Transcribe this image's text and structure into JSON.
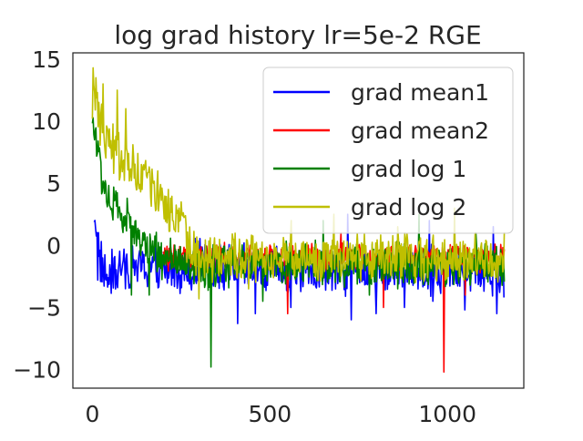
{
  "chart_data": {
    "type": "line",
    "title": "log grad history lr=5e-2 RGE",
    "xlabel": "",
    "ylabel": "",
    "xlim": [
      -55,
      1215
    ],
    "ylim": [
      -11.5,
      15.5
    ],
    "x_ticks": [
      0,
      500,
      1000
    ],
    "x_tick_labels": [
      "0",
      "500",
      "1000"
    ],
    "y_ticks": [
      15,
      10,
      5,
      0,
      -5,
      -10
    ],
    "y_tick_labels": [
      "15",
      "10",
      "5",
      "0",
      "−5",
      "−10"
    ],
    "grid": false,
    "legend_position": "top-right",
    "n_points": 1160,
    "series": [
      {
        "name": "grad mean1",
        "color": "#0000ff",
        "description": "noisy trace: high early values decaying toward about -2 with spikes",
        "keypoints": [
          [
            5,
            3
          ],
          [
            10,
            2
          ],
          [
            20,
            -1
          ],
          [
            40,
            -2.8
          ],
          [
            100,
            -1.5
          ],
          [
            200,
            -2
          ],
          [
            300,
            -1.5
          ],
          [
            400,
            -2
          ],
          [
            500,
            -2
          ],
          [
            600,
            -2
          ],
          [
            700,
            -2
          ],
          [
            800,
            -2
          ],
          [
            900,
            -2
          ],
          [
            1000,
            -2
          ],
          [
            1100,
            -2
          ],
          [
            1160,
            -2
          ]
        ],
        "noise": 2.2,
        "spikes": [
          [
            15,
            -2.8
          ],
          [
            40,
            -2.8
          ],
          [
            410,
            -6.3
          ],
          [
            460,
            -5.5
          ],
          [
            560,
            -5
          ],
          [
            730,
            -6
          ],
          [
            800,
            -5.5
          ],
          [
            880,
            -5
          ],
          [
            960,
            -4.5
          ],
          [
            1050,
            -5.2
          ],
          [
            1140,
            -5.5
          ],
          [
            1160,
            -4.2
          ],
          [
            720,
            2.5
          ],
          [
            950,
            2
          ],
          [
            1130,
            1.5
          ]
        ]
      },
      {
        "name": "grad mean2",
        "color": "#ff0000",
        "description": "noisy trace centred near -1 from x=200 onward",
        "keypoints": [
          [
            200,
            -1
          ],
          [
            300,
            -1
          ],
          [
            400,
            -1
          ],
          [
            500,
            -1
          ],
          [
            600,
            -1
          ],
          [
            700,
            -1
          ],
          [
            800,
            -1
          ],
          [
            900,
            -1
          ],
          [
            1000,
            -1
          ],
          [
            1100,
            -1
          ],
          [
            1160,
            -1
          ]
        ],
        "noise": 1.3,
        "spikes": [
          [
            550,
            -5.5
          ],
          [
            990,
            -10.2
          ],
          [
            820,
            -5
          ],
          [
            700,
            1
          ],
          [
            1050,
            -4
          ]
        ]
      },
      {
        "name": "grad log 1",
        "color": "#008000",
        "description": "noisy trace decaying from about 10 early to about -1.5",
        "keypoints": [
          [
            0,
            10
          ],
          [
            30,
            5
          ],
          [
            60,
            3
          ],
          [
            100,
            2
          ],
          [
            150,
            0
          ],
          [
            200,
            -1
          ],
          [
            250,
            -1.5
          ],
          [
            300,
            -2
          ],
          [
            400,
            -1.5
          ],
          [
            500,
            -1.5
          ],
          [
            600,
            -1.5
          ],
          [
            700,
            -1.5
          ],
          [
            800,
            -1.5
          ],
          [
            900,
            -1.5
          ],
          [
            1000,
            -1.5
          ],
          [
            1100,
            -1.5
          ],
          [
            1160,
            -1.5
          ]
        ],
        "noise": 2.0,
        "spikes": [
          [
            335,
            -9.8
          ],
          [
            110,
            -4
          ],
          [
            160,
            -4
          ],
          [
            650,
            2
          ],
          [
            780,
            -4
          ],
          [
            1080,
            1
          ],
          [
            480,
            -4.5
          ],
          [
            860,
            -3.5
          ],
          [
            920,
            2.5
          ]
        ]
      },
      {
        "name": "grad log 2",
        "color": "#bfbf00",
        "description": "noisy trace starting near 14 decaying to about -1",
        "keypoints": [
          [
            0,
            12
          ],
          [
            20,
            10
          ],
          [
            50,
            8
          ],
          [
            80,
            7
          ],
          [
            120,
            6
          ],
          [
            160,
            5
          ],
          [
            200,
            3.5
          ],
          [
            240,
            2
          ],
          [
            280,
            0
          ],
          [
            320,
            -1
          ],
          [
            400,
            -1
          ],
          [
            500,
            -1
          ],
          [
            600,
            -1
          ],
          [
            700,
            -1
          ],
          [
            800,
            -1
          ],
          [
            900,
            -1
          ],
          [
            1000,
            -1
          ],
          [
            1100,
            -1
          ],
          [
            1160,
            -1
          ]
        ],
        "noise": 2.2,
        "spikes": [
          [
            2,
            14.3
          ],
          [
            10,
            13.5
          ],
          [
            30,
            13
          ],
          [
            70,
            12.5
          ],
          [
            95,
            11
          ],
          [
            185,
            6
          ],
          [
            215,
            4.5
          ],
          [
            250,
            3.5
          ],
          [
            300,
            -4.3
          ],
          [
            560,
            2
          ],
          [
            680,
            2.5
          ],
          [
            860,
            1.5
          ],
          [
            1020,
            3
          ],
          [
            440,
            -3.5
          ]
        ]
      }
    ]
  }
}
